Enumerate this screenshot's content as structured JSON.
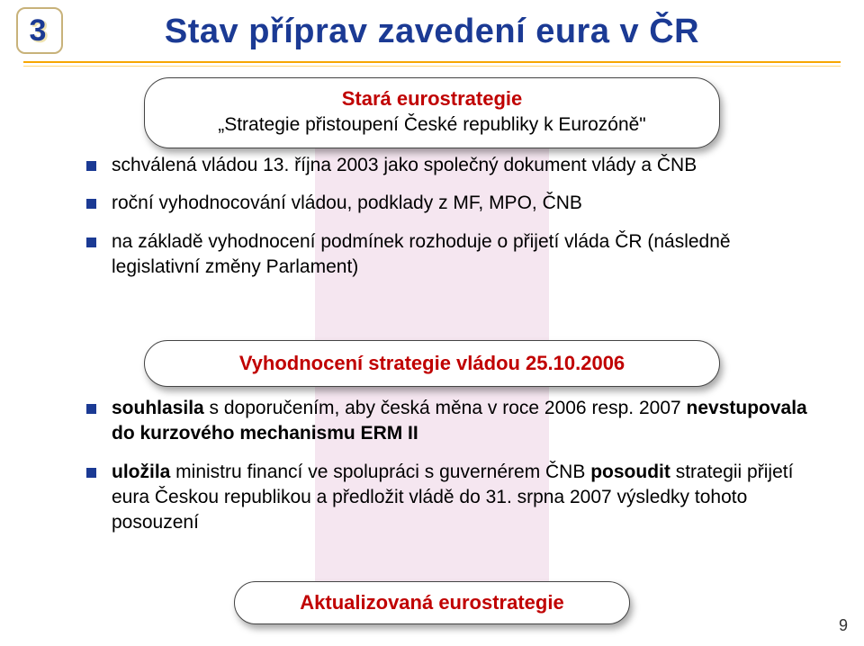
{
  "colors": {
    "brand_blue": "#1b3a94",
    "accent_red": "#c00000",
    "rule_orange_top": "#f7a600",
    "rule_orange_bottom": "#ffd77a",
    "badge_border": "#c8b27a",
    "pink_bar": "#f5e6f0",
    "text": "#000000",
    "background": "#ffffff",
    "shadow": "rgba(0,0,0,0.35)"
  },
  "typography": {
    "title_fontsize": 38,
    "capsule_title_fontsize": 22,
    "capsule_sub_fontsize": 21,
    "body_fontsize": 21,
    "pagenum_fontsize": 18,
    "font_family": "Arial"
  },
  "badge": {
    "number": "3"
  },
  "title": "Stav příprav zavedení eura v ČR",
  "capsule_top": {
    "title": "Stará eurostrategie",
    "subtitle": "„Strategie přistoupení České republiky k Eurozóně\""
  },
  "bullets_top": [
    "schválená vládou 13. října 2003 jako společný dokument vlády a ČNB",
    "roční vyhodnocování vládou, podklady z MF, MPO, ČNB",
    "na základě vyhodnocení podmínek rozhoduje o přijetí vláda ČR (následně legislativní změny Parlament)"
  ],
  "capsule_eval": {
    "title": "Vyhodnocení strategie vládou 25.10.2006"
  },
  "bullets_bottom_html": [
    "<b>souhlasila</b> s doporučením, aby česká měna v roce 2006 resp. 2007 <b>nevstupovala do kurzového mechanismu ERM II</b>",
    "<b>uložila</b> ministru financí ve spolupráci s guvernérem ČNB <b>posoudit</b> strategii přijetí eura Českou republikou a předložit vládě do 31. srpna 2007 výsledky tohoto posouzení"
  ],
  "capsule_bottom": {
    "title": "Aktualizovaná eurostrategie"
  },
  "page_number": "9"
}
